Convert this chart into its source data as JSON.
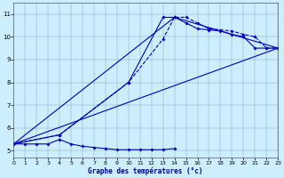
{
  "bg_color": "#cceeff",
  "line_color": "#0000bb",
  "xlabel": "Graphe des températures (°c)",
  "xlim": [
    0,
    23
  ],
  "ylim": [
    4.7,
    11.5
  ],
  "xticks": [
    0,
    1,
    2,
    3,
    4,
    5,
    6,
    7,
    8,
    9,
    10,
    11,
    12,
    13,
    14,
    15,
    16,
    17,
    18,
    19,
    20,
    21,
    22,
    23
  ],
  "yticks": [
    5,
    6,
    7,
    8,
    9,
    10,
    11
  ],
  "line1_x": [
    0,
    1,
    2,
    3,
    4,
    5,
    6,
    7,
    8,
    9,
    10,
    11,
    12,
    13,
    14
  ],
  "line1_y": [
    5.3,
    5.3,
    5.3,
    5.3,
    5.5,
    5.3,
    5.2,
    5.15,
    5.1,
    5.05,
    5.05,
    5.05,
    5.05,
    5.05,
    5.1
  ],
  "line2_x": [
    0,
    4,
    10,
    13,
    14,
    15,
    16,
    17,
    18,
    19,
    20,
    21,
    22,
    23
  ],
  "line2_y": [
    5.3,
    5.7,
    8.0,
    9.9,
    10.85,
    10.85,
    10.6,
    10.35,
    10.3,
    10.25,
    10.1,
    10.0,
    9.5,
    9.5
  ],
  "line2_dashed": true,
  "line3_x": [
    0,
    4,
    10,
    13,
    14,
    15,
    16,
    17,
    18,
    19,
    20,
    21,
    22,
    23
  ],
  "line3_y": [
    5.3,
    5.7,
    8.0,
    10.85,
    10.85,
    10.6,
    10.35,
    10.3,
    10.25,
    10.1,
    10.0,
    9.5,
    9.5,
    9.5
  ],
  "line3_dashed": false,
  "line4_x": [
    0,
    14,
    23
  ],
  "line4_y": [
    5.3,
    10.85,
    9.5
  ],
  "line5_x": [
    0,
    23
  ],
  "line5_y": [
    5.3,
    9.5
  ]
}
